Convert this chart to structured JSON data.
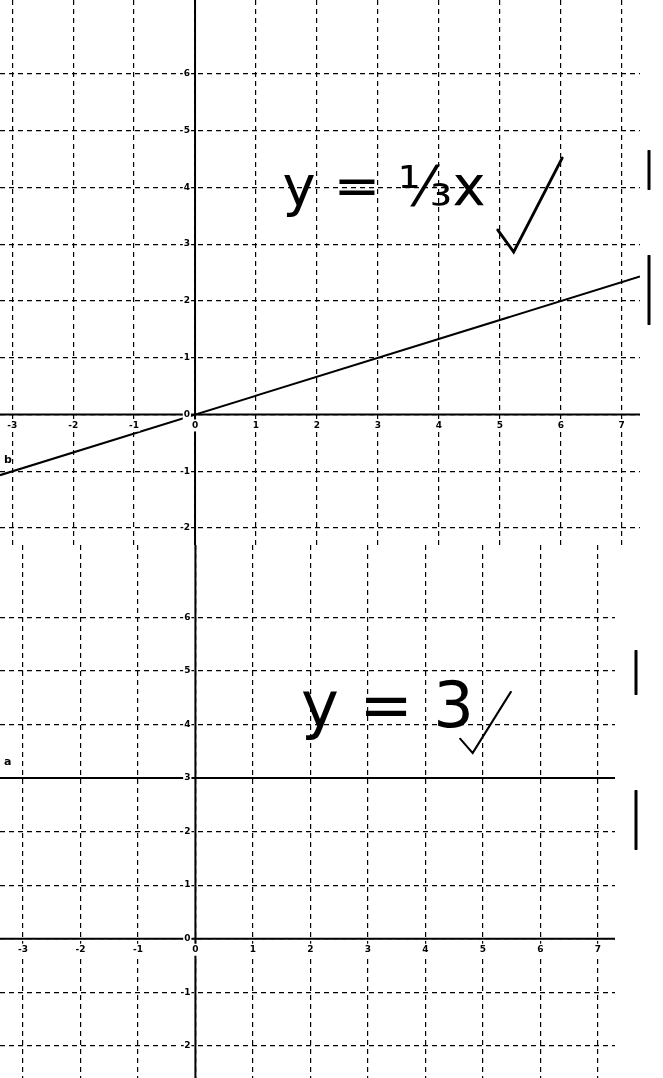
{
  "chart_data": [
    {
      "type": "line",
      "xlim": [
        -3.2,
        7.3
      ],
      "ylim": [
        -2.3,
        7.3
      ],
      "xticks": [
        -3,
        -2,
        -1,
        0,
        1,
        2,
        3,
        4,
        5,
        6,
        7
      ],
      "yticks": [
        -2,
        -1,
        0,
        1,
        2,
        3,
        4,
        5,
        6
      ],
      "grid": true,
      "annotations": [
        "y = ⅓x"
      ],
      "series": [
        {
          "name": "b",
          "color": "#000000",
          "x": [
            -3.2,
            7.3
          ],
          "values": [
            -1.07,
            2.43
          ]
        }
      ]
    },
    {
      "type": "line",
      "xlim": [
        -3.4,
        7.3
      ],
      "ylim": [
        -2.6,
        7.35
      ],
      "xticks": [
        -3,
        -2,
        -1,
        0,
        1,
        2,
        3,
        4,
        5,
        6,
        7
      ],
      "yticks": [
        -2,
        -1,
        0,
        1,
        2,
        3,
        4,
        5,
        6
      ],
      "grid": true,
      "annotations": [
        "y = 3"
      ],
      "series": [
        {
          "name": "a",
          "color": "#000000",
          "x": [
            -3.4,
            7.3
          ],
          "values": [
            3,
            3
          ]
        }
      ]
    }
  ]
}
